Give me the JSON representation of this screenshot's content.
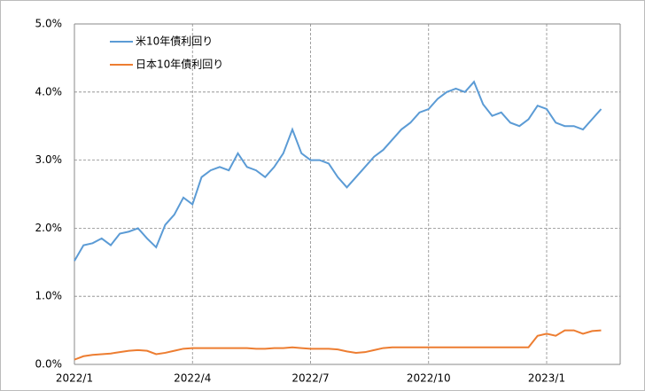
{
  "chart_data": {
    "type": "line",
    "categories": [
      "2022/1",
      null,
      null,
      null,
      null,
      null,
      null,
      null,
      null,
      null,
      null,
      null,
      null,
      "2022/4",
      null,
      null,
      null,
      null,
      null,
      null,
      null,
      null,
      null,
      null,
      null,
      null,
      "2022/7",
      null,
      null,
      null,
      null,
      null,
      null,
      null,
      null,
      null,
      null,
      null,
      null,
      "2022/10",
      null,
      null,
      null,
      null,
      null,
      null,
      null,
      null,
      null,
      null,
      null,
      null,
      "2023/1",
      null,
      null,
      null,
      null,
      null,
      null
    ],
    "series": [
      {
        "name": "米10年債利回り",
        "color": "#5b9bd5",
        "values": [
          1.52,
          1.75,
          1.78,
          1.85,
          1.75,
          1.92,
          1.95,
          2.0,
          1.85,
          1.72,
          2.05,
          2.2,
          2.45,
          2.35,
          2.75,
          2.85,
          2.9,
          2.85,
          3.1,
          2.9,
          2.85,
          2.75,
          2.9,
          3.1,
          3.45,
          3.1,
          3.0,
          3.0,
          2.95,
          2.75,
          2.6,
          2.75,
          2.9,
          3.05,
          3.15,
          3.3,
          3.45,
          3.55,
          3.7,
          3.75,
          3.9,
          4.0,
          4.05,
          4.0,
          4.15,
          3.82,
          3.65,
          3.7,
          3.55,
          3.5,
          3.6,
          3.8,
          3.75,
          3.55,
          3.5,
          3.5,
          3.45,
          3.6,
          3.75
        ]
      },
      {
        "name": "日本10年債利回り",
        "color": "#ed7d31",
        "values": [
          0.07,
          0.12,
          0.14,
          0.15,
          0.16,
          0.18,
          0.2,
          0.21,
          0.2,
          0.15,
          0.17,
          0.2,
          0.23,
          0.24,
          0.24,
          0.24,
          0.24,
          0.24,
          0.24,
          0.24,
          0.23,
          0.23,
          0.24,
          0.24,
          0.25,
          0.24,
          0.23,
          0.23,
          0.23,
          0.22,
          0.19,
          0.17,
          0.18,
          0.21,
          0.24,
          0.25,
          0.25,
          0.25,
          0.25,
          0.25,
          0.25,
          0.25,
          0.25,
          0.25,
          0.25,
          0.25,
          0.25,
          0.25,
          0.25,
          0.25,
          0.25,
          0.42,
          0.45,
          0.42,
          0.5,
          0.5,
          0.45,
          0.49,
          0.5
        ]
      }
    ],
    "ylim": [
      0,
      5
    ],
    "yticks": [
      {
        "value": 0,
        "label": "0.0%"
      },
      {
        "value": 1,
        "label": "1.0%"
      },
      {
        "value": 2,
        "label": "2.0%"
      },
      {
        "value": 3,
        "label": "3.0%"
      },
      {
        "value": 4,
        "label": "4.0%"
      },
      {
        "value": 5,
        "label": "5.0%"
      }
    ],
    "grid": true,
    "legend": "upper-left"
  }
}
